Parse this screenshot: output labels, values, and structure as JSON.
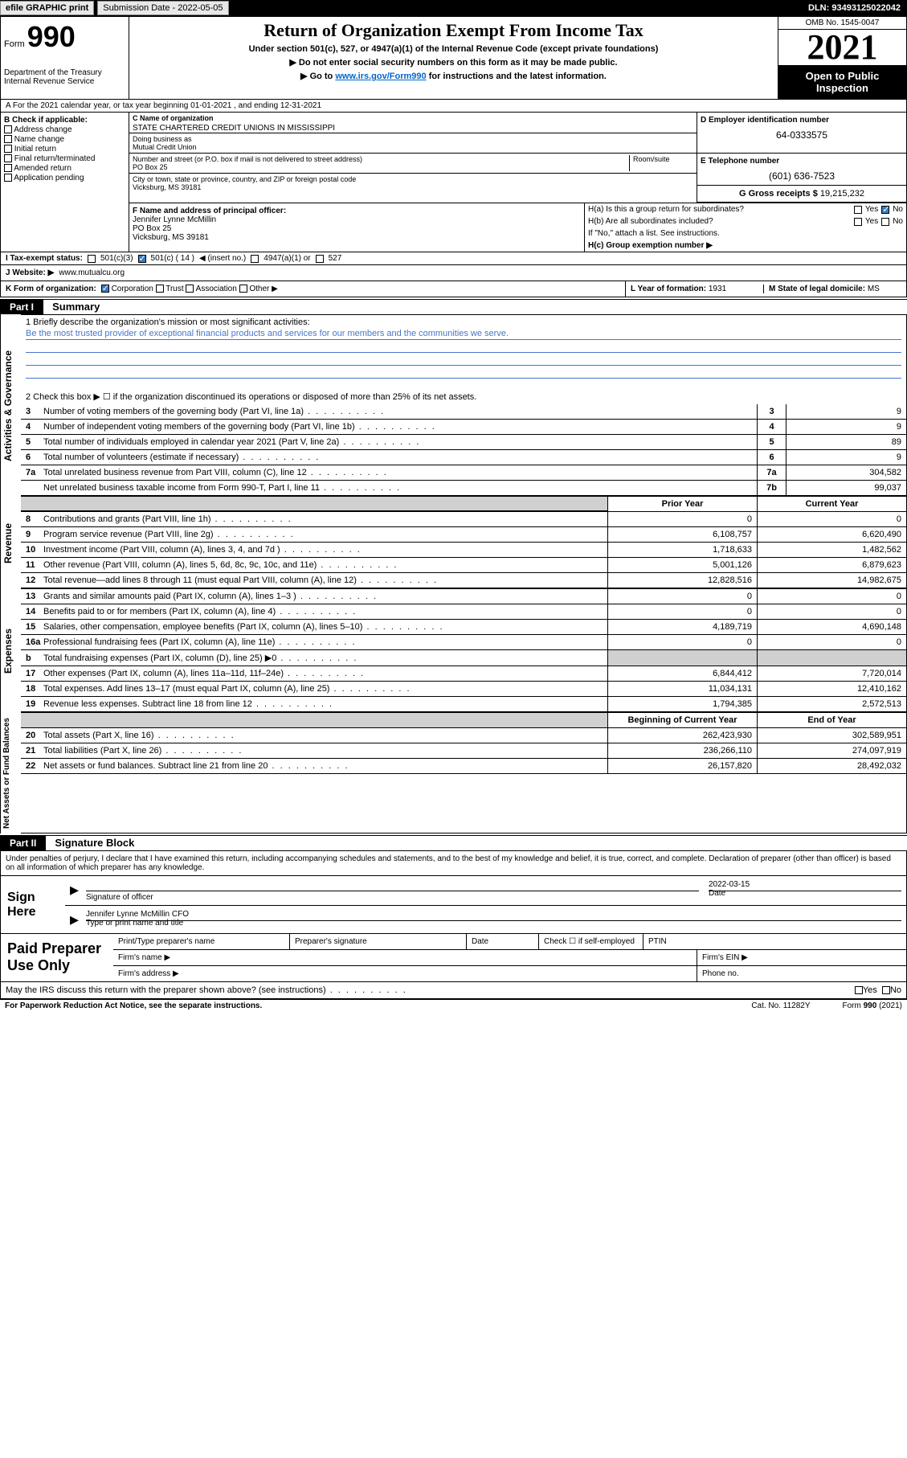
{
  "topbar": {
    "efile": "efile GRAPHIC print",
    "subdate_lbl": "Submission Date - ",
    "subdate": "2022-05-05",
    "dln": "DLN: 93493125022042"
  },
  "header": {
    "form_lbl": "Form",
    "form_num": "990",
    "dept": "Department of the Treasury Internal Revenue Service",
    "title": "Return of Organization Exempt From Income Tax",
    "sub1": "Under section 501(c), 527, or 4947(a)(1) of the Internal Revenue Code (except private foundations)",
    "sub2_pre": "▶ Do not enter social security numbers on this form as it may be made public.",
    "sub3_pre": "▶ Go to ",
    "sub3_link": "www.irs.gov/Form990",
    "sub3_post": " for instructions and the latest information.",
    "omb": "OMB No. 1545-0047",
    "year": "2021",
    "open_public": "Open to Public Inspection"
  },
  "line_a": "A For the 2021 calendar year, or tax year beginning 01-01-2021   , and ending 12-31-2021",
  "section_b": {
    "hdr": "B Check if applicable:",
    "items": [
      "Address change",
      "Name change",
      "Initial return",
      "Final return/terminated",
      "Amended return",
      "Application pending"
    ]
  },
  "section_c": {
    "lbl": "C Name of organization",
    "name": "STATE CHARTERED CREDIT UNIONS IN MISSISSIPPI",
    "dba_lbl": "Doing business as",
    "dba": "Mutual Credit Union",
    "street_lbl": "Number and street (or P.O. box if mail is not delivered to street address)",
    "street": "PO Box 25",
    "room_lbl": "Room/suite",
    "city_lbl": "City or town, state or province, country, and ZIP or foreign postal code",
    "city": "Vicksburg, MS  39181"
  },
  "section_d": {
    "lbl": "D Employer identification number",
    "val": "64-0333575"
  },
  "section_e": {
    "lbl": "E Telephone number",
    "val": "(601) 636-7523"
  },
  "section_f": {
    "lbl": "F Name and address of principal officer:",
    "name": "Jennifer Lynne McMillin",
    "addr1": "PO Box 25",
    "addr2": "Vicksburg, MS  39181"
  },
  "section_g": {
    "lbl": "G Gross receipts $",
    "val": "19,215,232"
  },
  "section_h": {
    "a_lbl": "H(a)  Is this a group return for subordinates?",
    "b_lbl": "H(b)  Are all subordinates included?",
    "b_note": "If \"No,\" attach a list. See instructions.",
    "c_lbl": "H(c)  Group exemption number ▶"
  },
  "section_i": {
    "lbl": "I  Tax-exempt status:",
    "opt1": "501(c)(3)",
    "opt2a": "501(c) ( 14 ) ",
    "opt2b": "◀ (insert no.)",
    "opt3": "4947(a)(1) or",
    "opt4": "527"
  },
  "section_j": {
    "lbl": "J  Website: ▶",
    "val": "www.mutualcu.org"
  },
  "section_k": {
    "lbl": "K Form of organization:",
    "opts": [
      "Corporation",
      "Trust",
      "Association",
      "Other ▶"
    ]
  },
  "section_l": {
    "lbl": "L Year of formation:",
    "val": "1931"
  },
  "section_m": {
    "lbl": "M State of legal domicile:",
    "val": "MS"
  },
  "part1": {
    "hdr": "Part I",
    "title": "Summary",
    "line1_lbl": "1  Briefly describe the organization's mission or most significant activities:",
    "line1_val": "Be the most trusted provider of exceptional financial products and services for our members and the communities we serve.",
    "line2": "2  Check this box ▶ ☐  if the organization discontinued its operations or disposed of more than 25% of its net assets.",
    "rows_gov": [
      {
        "n": "3",
        "t": "Number of voting members of the governing body (Part VI, line 1a)",
        "box": "3",
        "v": "9"
      },
      {
        "n": "4",
        "t": "Number of independent voting members of the governing body (Part VI, line 1b)",
        "box": "4",
        "v": "9"
      },
      {
        "n": "5",
        "t": "Total number of individuals employed in calendar year 2021 (Part V, line 2a)",
        "box": "5",
        "v": "89"
      },
      {
        "n": "6",
        "t": "Total number of volunteers (estimate if necessary)",
        "box": "6",
        "v": "9"
      },
      {
        "n": "7a",
        "t": "Total unrelated business revenue from Part VIII, column (C), line 12",
        "box": "7a",
        "v": "304,582"
      },
      {
        "n": "",
        "t": "Net unrelated business taxable income from Form 990-T, Part I, line 11",
        "box": "7b",
        "v": "99,037"
      }
    ],
    "col_prior": "Prior Year",
    "col_curr": "Current Year",
    "revenue": [
      {
        "n": "8",
        "t": "Contributions and grants (Part VIII, line 1h)",
        "p": "0",
        "c": "0"
      },
      {
        "n": "9",
        "t": "Program service revenue (Part VIII, line 2g)",
        "p": "6,108,757",
        "c": "6,620,490"
      },
      {
        "n": "10",
        "t": "Investment income (Part VIII, column (A), lines 3, 4, and 7d )",
        "p": "1,718,633",
        "c": "1,482,562"
      },
      {
        "n": "11",
        "t": "Other revenue (Part VIII, column (A), lines 5, 6d, 8c, 9c, 10c, and 11e)",
        "p": "5,001,126",
        "c": "6,879,623"
      },
      {
        "n": "12",
        "t": "Total revenue—add lines 8 through 11 (must equal Part VIII, column (A), line 12)",
        "p": "12,828,516",
        "c": "14,982,675"
      }
    ],
    "expenses": [
      {
        "n": "13",
        "t": "Grants and similar amounts paid (Part IX, column (A), lines 1–3 )",
        "p": "0",
        "c": "0"
      },
      {
        "n": "14",
        "t": "Benefits paid to or for members (Part IX, column (A), line 4)",
        "p": "0",
        "c": "0"
      },
      {
        "n": "15",
        "t": "Salaries, other compensation, employee benefits (Part IX, column (A), lines 5–10)",
        "p": "4,189,719",
        "c": "4,690,148"
      },
      {
        "n": "16a",
        "t": "Professional fundraising fees (Part IX, column (A), line 11e)",
        "p": "0",
        "c": "0"
      },
      {
        "n": "b",
        "t": "Total fundraising expenses (Part IX, column (D), line 25) ▶0",
        "p": "GRAY",
        "c": "GRAY"
      },
      {
        "n": "17",
        "t": "Other expenses (Part IX, column (A), lines 11a–11d, 11f–24e)",
        "p": "6,844,412",
        "c": "7,720,014"
      },
      {
        "n": "18",
        "t": "Total expenses. Add lines 13–17 (must equal Part IX, column (A), line 25)",
        "p": "11,034,131",
        "c": "12,410,162"
      },
      {
        "n": "19",
        "t": "Revenue less expenses. Subtract line 18 from line 12",
        "p": "1,794,385",
        "c": "2,572,513"
      }
    ],
    "col_beg": "Beginning of Current Year",
    "col_end": "End of Year",
    "netassets": [
      {
        "n": "20",
        "t": "Total assets (Part X, line 16)",
        "p": "262,423,930",
        "c": "302,589,951"
      },
      {
        "n": "21",
        "t": "Total liabilities (Part X, line 26)",
        "p": "236,266,110",
        "c": "274,097,919"
      },
      {
        "n": "22",
        "t": "Net assets or fund balances. Subtract line 21 from line 20",
        "p": "26,157,820",
        "c": "28,492,032"
      }
    ],
    "vtabs": {
      "gov": "Activities & Governance",
      "rev": "Revenue",
      "exp": "Expenses",
      "na": "Net Assets or Fund Balances"
    }
  },
  "part2": {
    "hdr": "Part II",
    "title": "Signature Block",
    "declare": "Under penalties of perjury, I declare that I have examined this return, including accompanying schedules and statements, and to the best of my knowledge and belief, it is true, correct, and complete. Declaration of preparer (other than officer) is based on all information of which preparer has any knowledge.",
    "sign_here": "Sign Here",
    "sig_officer": "Signature of officer",
    "sig_date_val": "2022-03-15",
    "sig_date": "Date",
    "sig_name": "Jennifer Lynne McMillin CFO",
    "sig_name_lbl": "Type or print name and title",
    "paid_prep": "Paid Preparer Use Only",
    "pp_name": "Print/Type preparer's name",
    "pp_sig": "Preparer's signature",
    "pp_date": "Date",
    "pp_check": "Check ☐ if self-employed",
    "pp_ptin": "PTIN",
    "pp_firm": "Firm's name  ▶",
    "pp_ein": "Firm's EIN ▶",
    "pp_addr": "Firm's address ▶",
    "pp_phone": "Phone no.",
    "discuss": "May the IRS discuss this return with the preparer shown above? (see instructions)",
    "yes": "Yes",
    "no": "No"
  },
  "footer": {
    "left": "For Paperwork Reduction Act Notice, see the separate instructions.",
    "center": "Cat. No. 11282Y",
    "right": "Form 990 (2021)"
  },
  "labels": {
    "yes": "Yes",
    "no": "No"
  }
}
